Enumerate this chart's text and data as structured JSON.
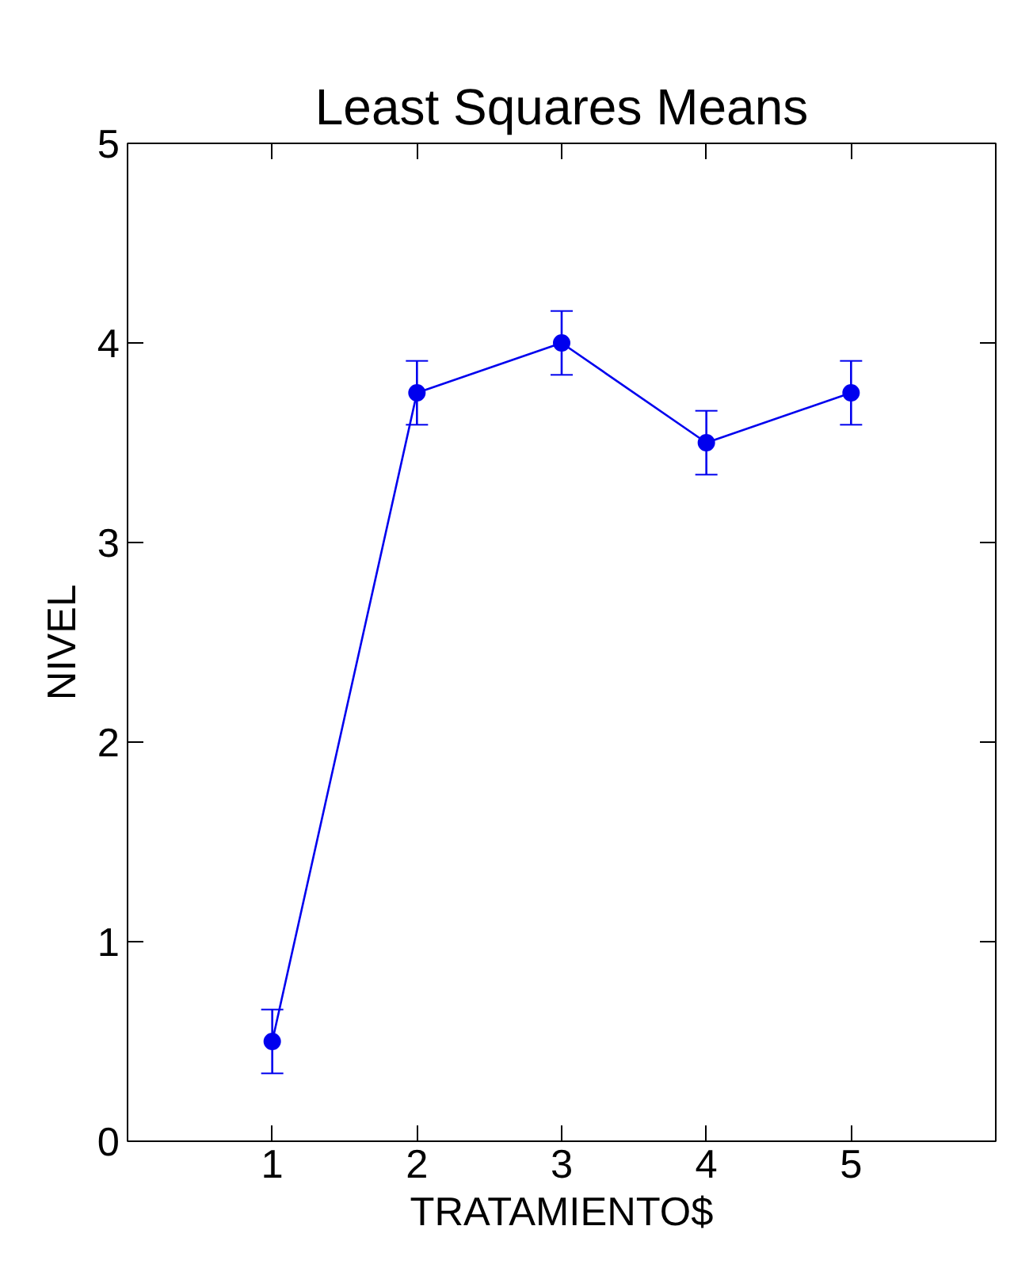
{
  "chart_data": {
    "type": "line",
    "title": "Least Squares Means",
    "xlabel": "TRATAMIENTO$",
    "ylabel": "NIVEL",
    "x": [
      1,
      2,
      3,
      4,
      5
    ],
    "series": [
      {
        "color": "#0000ee",
        "values": [
          0.5,
          3.75,
          4.0,
          3.5,
          3.75
        ],
        "errors": [
          0.16,
          0.16,
          0.16,
          0.16,
          0.16
        ]
      }
    ],
    "xlim": [
      0,
      6
    ],
    "ylim": [
      0,
      5
    ],
    "xticks": [
      1,
      2,
      3,
      4,
      5
    ],
    "yticks": [
      0,
      1,
      2,
      3,
      4,
      5
    ],
    "grid": false,
    "marker": "circle",
    "line_style": "solid"
  }
}
